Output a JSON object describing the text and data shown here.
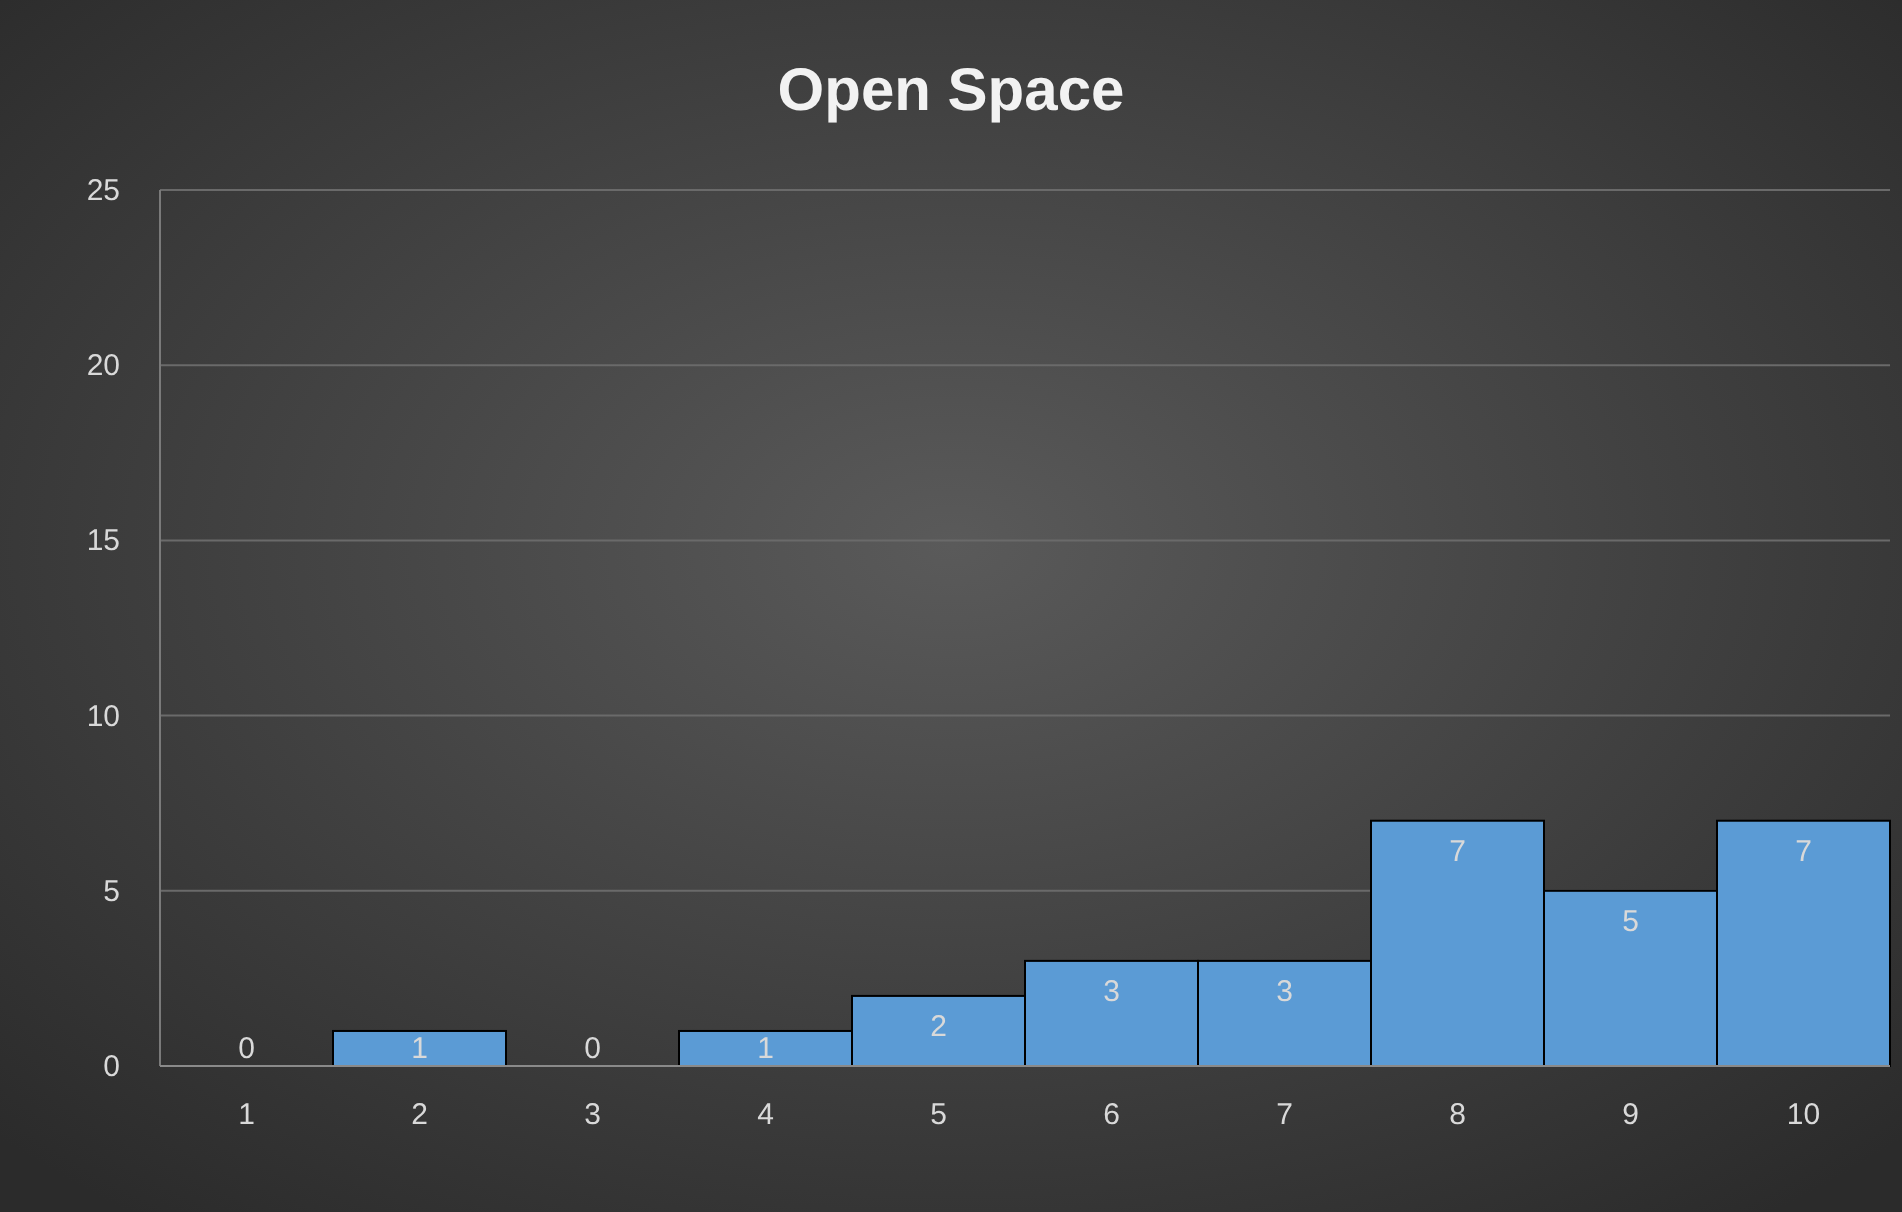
{
  "chart_data": {
    "type": "bar",
    "title": "Open Space",
    "categories": [
      "1",
      "2",
      "3",
      "4",
      "5",
      "6",
      "7",
      "8",
      "9",
      "10"
    ],
    "values": [
      0,
      1,
      0,
      1,
      2,
      3,
      3,
      7,
      5,
      7
    ],
    "color": "#5b9bd5",
    "ylim": [
      0,
      25
    ],
    "yticks": [
      0,
      5,
      10,
      15,
      20,
      25
    ],
    "grid": "y",
    "data_labels": true
  }
}
